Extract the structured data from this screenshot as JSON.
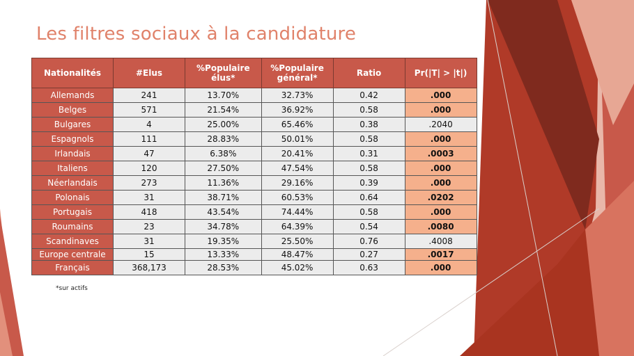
{
  "title": "Les filtres sociaux à la candidature",
  "table": {
    "headers": [
      "Nationalités",
      "#Elus",
      "%Populaire élus*",
      "%Populaire général*",
      "Ratio",
      "Pr(|T| > |t|)"
    ],
    "rows": [
      {
        "nat": "Allemands",
        "elus": "241",
        "pop_elus": "13.70%",
        "pop_gen": "32.73%",
        "ratio": "0.42",
        "p": ".000",
        "sig": true
      },
      {
        "nat": "Belges",
        "elus": "571",
        "pop_elus": "21.54%",
        "pop_gen": "36.92%",
        "ratio": "0.58",
        "p": ".000",
        "sig": true
      },
      {
        "nat": "Bulgares",
        "elus": "4",
        "pop_elus": "25.00%",
        "pop_gen": "65.46%",
        "ratio": "0.38",
        "p": ".2040",
        "sig": false
      },
      {
        "nat": "Espagnols",
        "elus": "111",
        "pop_elus": "28.83%",
        "pop_gen": "50.01%",
        "ratio": "0.58",
        "p": ".000",
        "sig": true
      },
      {
        "nat": "Irlandais",
        "elus": "47",
        "pop_elus": "6.38%",
        "pop_gen": "20.41%",
        "ratio": "0.31",
        "p": ".0003",
        "sig": true
      },
      {
        "nat": "Italiens",
        "elus": "120",
        "pop_elus": "27.50%",
        "pop_gen": "47.54%",
        "ratio": "0.58",
        "p": ".000",
        "sig": true
      },
      {
        "nat": "Néerlandais",
        "elus": "273",
        "pop_elus": "11.36%",
        "pop_gen": "29.16%",
        "ratio": "0.39",
        "p": ".000",
        "sig": true
      },
      {
        "nat": "Polonais",
        "elus": "31",
        "pop_elus": "38.71%",
        "pop_gen": "60.53%",
        "ratio": "0.64",
        "p": ".0202",
        "sig": true
      },
      {
        "nat": "Portugais",
        "elus": "418",
        "pop_elus": "43.54%",
        "pop_gen": "74.44%",
        "ratio": "0.58",
        "p": ".000",
        "sig": true
      },
      {
        "nat": "Roumains",
        "elus": "23",
        "pop_elus": "34.78%",
        "pop_gen": "64.39%",
        "ratio": "0.54",
        "p": ".0080",
        "sig": true
      },
      {
        "nat": "Scandinaves",
        "elus": "31",
        "pop_elus": "19.35%",
        "pop_gen": "25.50%",
        "ratio": "0.76",
        "p": ".4008",
        "sig": false
      },
      {
        "nat": "Europe centrale",
        "elus": "15",
        "pop_elus": "13.33%",
        "pop_gen": "48.47%",
        "ratio": "0.27",
        "p": ".0017",
        "sig": true
      },
      {
        "nat": "Français",
        "elus": "368,173",
        "pop_elus": "28.53%",
        "pop_gen": "45.02%",
        "ratio": "0.63",
        "p": ".000",
        "sig": true
      }
    ]
  },
  "footnote": "*sur actifs",
  "colors": {
    "accent": "#c8594a",
    "highlight": "#f5b08c",
    "title": "#e0826a"
  }
}
